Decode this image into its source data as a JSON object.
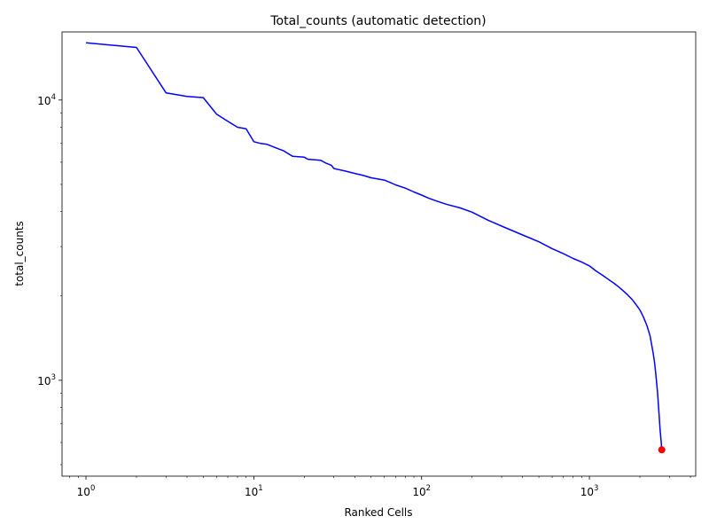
{
  "chart_data": {
    "type": "line",
    "title": "Total_counts (automatic detection)",
    "xlabel": "Ranked Cells",
    "ylabel": "total_counts",
    "xscale": "log",
    "yscale": "log",
    "xlim": [
      0.72,
      4300
    ],
    "ylim": [
      455,
      17500
    ],
    "grid": false,
    "x_ticks": [
      {
        "value": 1,
        "base": "10",
        "exp": "0"
      },
      {
        "value": 10,
        "base": "10",
        "exp": "1"
      },
      {
        "value": 100,
        "base": "10",
        "exp": "2"
      },
      {
        "value": 1000,
        "base": "10",
        "exp": "3"
      }
    ],
    "y_ticks": [
      {
        "value": 1000,
        "base": "10",
        "exp": "3"
      },
      {
        "value": 10000,
        "base": "10",
        "exp": "4"
      }
    ],
    "series": [
      {
        "color": "#0000ff",
        "x": [
          1,
          2,
          3,
          4,
          5,
          6,
          7,
          8,
          9,
          10,
          11,
          12,
          14,
          15,
          17,
          20,
          21,
          25,
          27,
          29,
          30,
          35,
          40,
          45,
          50,
          60,
          65,
          70,
          80,
          90,
          100,
          110,
          120,
          140,
          170,
          200,
          250,
          300,
          400,
          500,
          600,
          700,
          800,
          900,
          1000,
          1100,
          1200,
          1300,
          1400,
          1500,
          1600,
          1700,
          1800,
          1900,
          2000,
          2100,
          2200,
          2300,
          2400,
          2450,
          2500,
          2550,
          2600,
          2640,
          2680,
          2700
        ],
        "y": [
          16000,
          15400,
          10600,
          10300,
          10200,
          8900,
          8400,
          8000,
          7900,
          7100,
          7000,
          6950,
          6700,
          6600,
          6300,
          6250,
          6150,
          6100,
          5950,
          5850,
          5700,
          5580,
          5470,
          5380,
          5280,
          5180,
          5080,
          4980,
          4850,
          4700,
          4580,
          4470,
          4380,
          4250,
          4120,
          3980,
          3720,
          3550,
          3300,
          3120,
          2950,
          2830,
          2720,
          2640,
          2560,
          2450,
          2370,
          2290,
          2220,
          2150,
          2080,
          2010,
          1940,
          1860,
          1780,
          1680,
          1570,
          1440,
          1250,
          1150,
          1020,
          900,
          760,
          660,
          600,
          565
        ]
      }
    ],
    "markers": [
      {
        "x": 2700,
        "y": 565,
        "color": "#ff0000"
      }
    ]
  }
}
